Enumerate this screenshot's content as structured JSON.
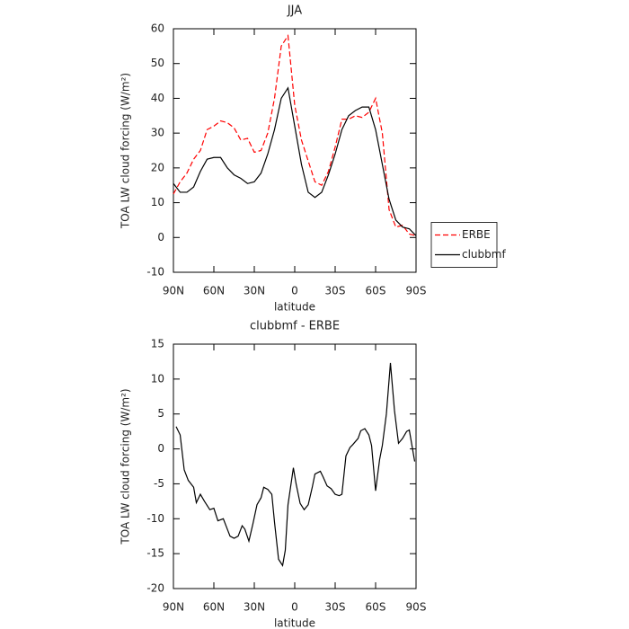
{
  "chart_data": [
    {
      "type": "line",
      "title": "JJA",
      "xlabel": "latitude",
      "ylabel": "TOA LW cloud forcing (W/m²)",
      "x": [
        90,
        85,
        80,
        75,
        70,
        65,
        60,
        55,
        50,
        45,
        40,
        35,
        30,
        25,
        20,
        15,
        10,
        5,
        0,
        -5,
        -10,
        -15,
        -20,
        -25,
        -30,
        -35,
        -40,
        -45,
        -50,
        -55,
        -60,
        -65,
        -70,
        -75,
        -80,
        -85,
        -90
      ],
      "xlim": [
        90,
        -90
      ],
      "xticks": [
        {
          "value": 90,
          "label": "90N"
        },
        {
          "value": 60,
          "label": "60N"
        },
        {
          "value": 30,
          "label": "30N"
        },
        0,
        {
          "value": -30,
          "label": "30S"
        },
        {
          "value": -60,
          "label": "60S"
        },
        {
          "value": -90,
          "label": "90S"
        }
      ],
      "ylim": [
        -10,
        60
      ],
      "yticks": [
        -10,
        0,
        10,
        20,
        30,
        40,
        50,
        60
      ],
      "legend": "right",
      "series": [
        {
          "name": "ERBE",
          "color": "#ff0000",
          "style": "dashed",
          "values": [
            12.5,
            16,
            18.5,
            22.5,
            25,
            31,
            32,
            33.5,
            33,
            31.5,
            28,
            28.5,
            24.5,
            25,
            30,
            40,
            55,
            58,
            38,
            28,
            22,
            16,
            15,
            19,
            26,
            34,
            34,
            35,
            34.5,
            36,
            40,
            30,
            8,
            3,
            3.5,
            1,
            0.5
          ]
        },
        {
          "name": "clubbmf",
          "color": "#000000",
          "style": "solid",
          "values": [
            15.5,
            13,
            13,
            14.5,
            19,
            22.5,
            23,
            23,
            20,
            18,
            17,
            15.5,
            16,
            18.5,
            24,
            31,
            40,
            43,
            32,
            21,
            13,
            11.5,
            13,
            18,
            24,
            31,
            35,
            36.5,
            37.5,
            37.5,
            31,
            21,
            11,
            5,
            3,
            2.5,
            0.5
          ]
        }
      ]
    },
    {
      "type": "line",
      "title": "clubbmf - ERBE",
      "xlabel": "latitude",
      "ylabel": "TOA LW cloud forcing (W/m²)",
      "x": [
        88,
        85,
        82,
        79,
        75,
        73,
        70,
        67,
        63,
        60,
        57,
        53,
        51,
        48,
        45,
        42,
        39,
        37,
        34,
        31,
        28,
        25,
        23,
        20,
        17,
        15,
        12,
        9,
        7,
        5,
        1,
        -1,
        -4,
        -7,
        -10,
        -13,
        -15,
        -19,
        -21,
        -24,
        -27,
        -30,
        -33,
        -35,
        -38,
        -41,
        -43,
        -47,
        -49,
        -52,
        -55,
        -57,
        -60,
        -63,
        -65,
        -68,
        -71,
        -74,
        -77,
        -80,
        -83,
        -85,
        -89
      ],
      "xlim": [
        90,
        -90
      ],
      "xticks": [
        {
          "value": 90,
          "label": "90N"
        },
        {
          "value": 60,
          "label": "60N"
        },
        {
          "value": 30,
          "label": "30N"
        },
        0,
        {
          "value": -30,
          "label": "30S"
        },
        {
          "value": -60,
          "label": "60S"
        },
        {
          "value": -90,
          "label": "90S"
        }
      ],
      "ylim": [
        -20,
        15
      ],
      "yticks": [
        -20,
        -15,
        -10,
        -5,
        0,
        5,
        10,
        15
      ],
      "series": [
        {
          "color": "#000000",
          "style": "solid",
          "values": [
            3.2,
            2,
            -3,
            -4.5,
            -5.5,
            -7.7,
            -6.5,
            -7.5,
            -8.7,
            -8.5,
            -10.3,
            -10,
            -11,
            -12.5,
            -12.8,
            -12.5,
            -11,
            -11.5,
            -13.2,
            -10.7,
            -8,
            -7,
            -5.5,
            -5.8,
            -6.5,
            -10.5,
            -15.8,
            -16.7,
            -14.5,
            -8,
            -2.7,
            -5,
            -7.8,
            -8.7,
            -8,
            -5.5,
            -3.6,
            -3.2,
            -4,
            -5.3,
            -5.7,
            -6.5,
            -6.7,
            -6.5,
            -1,
            0.2,
            0.6,
            1.5,
            2.6,
            2.9,
            2,
            0.5,
            -6,
            -1.5,
            0.5,
            5,
            12.3,
            5.5,
            0.8,
            1.5,
            2.5,
            2.7,
            -1.8
          ]
        }
      ]
    }
  ]
}
